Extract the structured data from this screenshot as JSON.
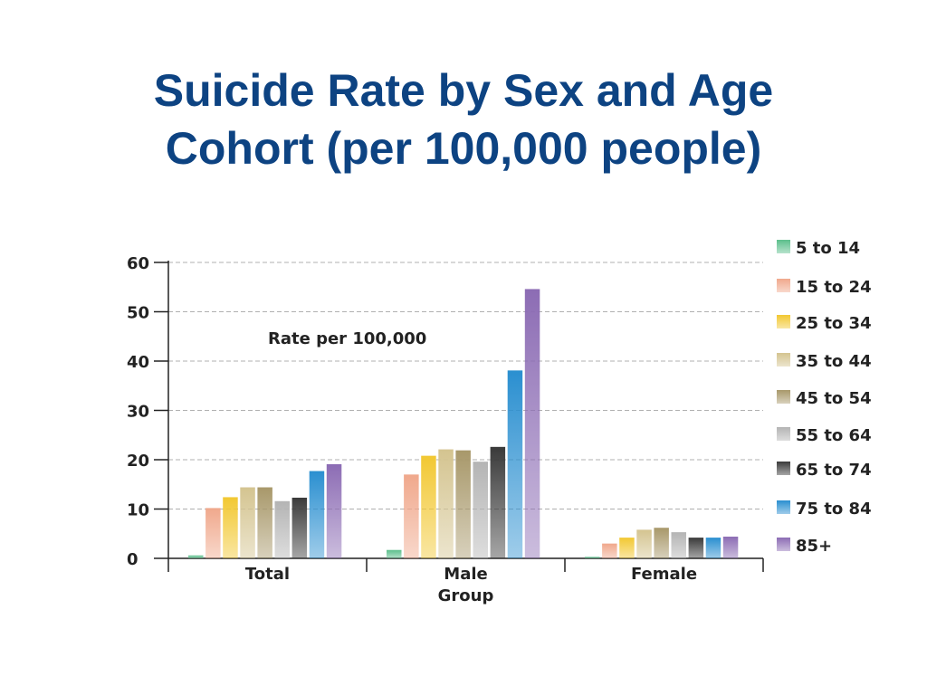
{
  "slide": {
    "title_line1": "Suicide Rate by Sex and Age",
    "title_line2": "Cohort (per 100,000 people)"
  },
  "chart_data": {
    "type": "bar",
    "title": "Suicide Rate by Sex and Age Cohort (per 100,000 people)",
    "annotation": "Rate  per 100,000",
    "xlabel": "Group",
    "ylabel": "",
    "ylim": [
      0,
      60
    ],
    "yticks": [
      "0",
      "10",
      "20",
      "30",
      "40",
      "50",
      "60"
    ],
    "grid": true,
    "legend_position": "right",
    "categories": [
      "Total",
      "Male",
      "Female"
    ],
    "series": [
      {
        "name": "5 to 14",
        "color": "#5cbf8c",
        "values": [
          0.6,
          1.7,
          0.3
        ]
      },
      {
        "name": "15 to 24",
        "color": "#f0a88c",
        "values": [
          10.2,
          17.0,
          3.0
        ]
      },
      {
        "name": "25 to 34",
        "color": "#f2c832",
        "values": [
          12.4,
          20.8,
          4.2
        ]
      },
      {
        "name": "35 to 44",
        "color": "#d4c490",
        "values": [
          14.4,
          22.1,
          5.8
        ]
      },
      {
        "name": "45 to 54",
        "color": "#a8986a",
        "values": [
          14.4,
          21.9,
          6.2
        ]
      },
      {
        "name": "55 to 64",
        "color": "#b4b4b4",
        "values": [
          11.6,
          19.6,
          5.3
        ]
      },
      {
        "name": "65 to 74",
        "color": "#3a3a3a",
        "values": [
          12.3,
          22.6,
          4.2
        ]
      },
      {
        "name": "75 to 84",
        "color": "#2a8fd0",
        "values": [
          17.7,
          38.1,
          4.2
        ]
      },
      {
        "name": "85+",
        "color": "#8c6cb4",
        "values": [
          19.1,
          54.6,
          4.4
        ]
      }
    ]
  }
}
